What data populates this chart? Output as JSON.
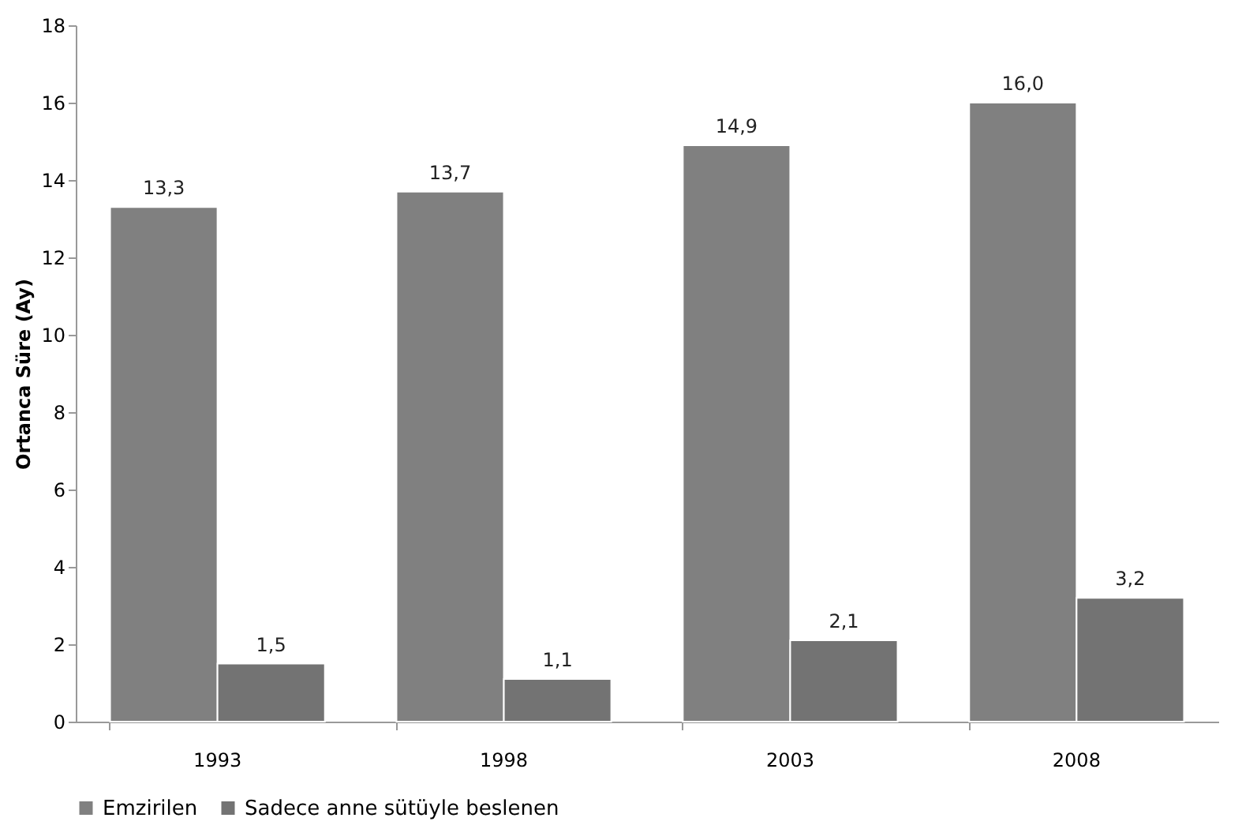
{
  "chart_data": {
    "type": "bar",
    "ylabel": "Ortanca Süre (Ay)",
    "categories": [
      "1993",
      "1998",
      "2003",
      "2008"
    ],
    "series": [
      {
        "name": "Emzirilen",
        "color": "#808080",
        "values": [
          13.3,
          13.7,
          14.9,
          16.0
        ],
        "value_labels": [
          "13,3",
          "13,7",
          "14,9",
          "16,0"
        ]
      },
      {
        "name": "Sadece anne sütüyle beslenen",
        "color": "#737373",
        "values": [
          1.5,
          1.1,
          2.1,
          3.2
        ],
        "value_labels": [
          "1,5",
          "1,1",
          "2,1",
          "3,2"
        ]
      }
    ],
    "ylim": [
      0,
      18
    ],
    "yticks": [
      0,
      2,
      4,
      6,
      8,
      10,
      12,
      14,
      16,
      18
    ],
    "grid": false,
    "legend": "bottom"
  }
}
